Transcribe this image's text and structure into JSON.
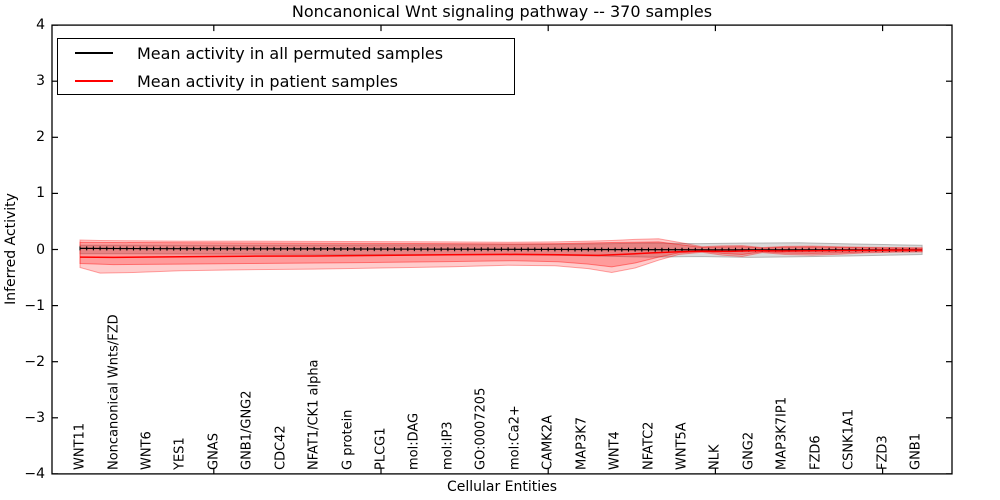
{
  "chart_data": {
    "type": "line",
    "title": "Noncanonical Wnt signaling pathway -- 370 samples",
    "samples_count": 370,
    "xlabel": "Cellular Entities",
    "ylabel": "Inferred Activity",
    "ylim": [
      -4,
      4
    ],
    "grid": false,
    "legend_position": "upper left",
    "yticks": {
      "values": [
        4,
        3,
        2,
        1,
        0,
        -1,
        -2,
        -3,
        -4
      ],
      "labels": [
        "4",
        "3",
        "2",
        "1",
        "0",
        "−1",
        "−2",
        "−3",
        "−4"
      ]
    },
    "xticks_unlabeled_values": [
      5,
      10,
      15,
      20,
      25
    ],
    "categories": [
      "WNT11",
      "Noncanonical Wnts/FZD",
      "WNT6",
      "YES1",
      "GNAS",
      "GNB1/GNG2",
      "CDC42",
      "NFAT1/CK1 alpha",
      "G protein",
      "PLCG1",
      "mol:DAG",
      "mol:IP3",
      "GO:0007205",
      "mol:Ca2+",
      "CAMK2A",
      "MAP3K7",
      "WNT4",
      "NFATC2",
      "WNT5A",
      "NLK",
      "GNG2",
      "MAP3K7IP1",
      "FZD6",
      "CSNK1A1",
      "FZD3",
      "GNB1"
    ],
    "series": [
      {
        "name": "Mean activity in all permuted samples",
        "color": "#000000",
        "marker": "small-vertical-tick",
        "points": [
          [
            1,
            0.02
          ],
          [
            4,
            0.015
          ],
          [
            8,
            0.01
          ],
          [
            12,
            0.005
          ],
          [
            16,
            0.0
          ],
          [
            20,
            -0.005
          ],
          [
            26.18,
            -0.005
          ]
        ]
      },
      {
        "name": "Mean activity in patient samples",
        "color": "#ff0000",
        "marker": "none",
        "points": [
          [
            1,
            -0.135
          ],
          [
            2,
            -0.14
          ],
          [
            4,
            -0.13
          ],
          [
            6,
            -0.12
          ],
          [
            8,
            -0.115
          ],
          [
            10,
            -0.105
          ],
          [
            12,
            -0.095
          ],
          [
            14,
            -0.088
          ],
          [
            15.3,
            -0.095
          ],
          [
            16.5,
            -0.105
          ],
          [
            17.3,
            -0.085
          ],
          [
            18.1,
            -0.06
          ],
          [
            18.9,
            -0.04
          ],
          [
            19.6,
            -0.028
          ],
          [
            20.4,
            -0.033
          ],
          [
            21.1,
            -0.022
          ],
          [
            22,
            -0.027
          ],
          [
            23,
            -0.022
          ],
          [
            24,
            -0.018
          ],
          [
            25,
            -0.012
          ],
          [
            26.18,
            -0.01
          ]
        ]
      }
    ],
    "bands": [
      {
        "name": "permuted-band",
        "color": "#787878",
        "alpha": 0.28,
        "points": [
          [
            1,
            0.075,
            -0.075
          ],
          [
            5,
            0.075,
            -0.08
          ],
          [
            9,
            0.08,
            -0.09
          ],
          [
            13,
            0.085,
            -0.095
          ],
          [
            15,
            0.09,
            -0.1
          ],
          [
            16.5,
            0.1,
            -0.115
          ],
          [
            18,
            0.115,
            -0.135
          ],
          [
            19.5,
            0.105,
            -0.125
          ],
          [
            21,
            0.115,
            -0.14
          ],
          [
            22.5,
            0.12,
            -0.13
          ],
          [
            24,
            0.1,
            -0.115
          ],
          [
            25.3,
            0.085,
            -0.1
          ],
          [
            26.18,
            0.075,
            -0.09
          ]
        ]
      },
      {
        "name": "patient-band-outer",
        "color": "#ff0000",
        "alpha": 0.2,
        "points": [
          [
            1,
            0.17,
            -0.32
          ],
          [
            1.6,
            0.16,
            -0.42
          ],
          [
            2.6,
            0.155,
            -0.41
          ],
          [
            4,
            0.15,
            -0.38
          ],
          [
            6,
            0.15,
            -0.36
          ],
          [
            8,
            0.145,
            -0.35
          ],
          [
            10,
            0.14,
            -0.33
          ],
          [
            12,
            0.135,
            -0.31
          ],
          [
            13.8,
            0.13,
            -0.28
          ],
          [
            15.2,
            0.135,
            -0.29
          ],
          [
            16.2,
            0.15,
            -0.34
          ],
          [
            16.9,
            0.16,
            -0.41
          ],
          [
            17.6,
            0.18,
            -0.33
          ],
          [
            18.3,
            0.19,
            -0.19
          ],
          [
            18.9,
            0.13,
            -0.09
          ],
          [
            19.6,
            0.05,
            -0.05
          ],
          [
            20.2,
            0.065,
            -0.1
          ],
          [
            20.8,
            0.07,
            -0.125
          ],
          [
            21.4,
            0.035,
            -0.055
          ],
          [
            22.1,
            0.055,
            -0.09
          ],
          [
            22.9,
            0.06,
            -0.1
          ],
          [
            23.7,
            0.05,
            -0.085
          ],
          [
            24.5,
            0.04,
            -0.06
          ],
          [
            25.3,
            0.035,
            -0.05
          ],
          [
            26.18,
            0.03,
            -0.045
          ]
        ]
      },
      {
        "name": "patient-band-inner",
        "color": "#ff0000",
        "alpha": 0.24,
        "points": [
          [
            1,
            0.13,
            -0.25
          ],
          [
            2,
            0.125,
            -0.27
          ],
          [
            4,
            0.12,
            -0.26
          ],
          [
            6,
            0.115,
            -0.25
          ],
          [
            9,
            0.11,
            -0.235
          ],
          [
            12,
            0.105,
            -0.215
          ],
          [
            14,
            0.1,
            -0.2
          ],
          [
            15.3,
            0.105,
            -0.22
          ],
          [
            16.2,
            0.115,
            -0.26
          ],
          [
            16.9,
            0.125,
            -0.31
          ],
          [
            17.6,
            0.13,
            -0.24
          ],
          [
            18.3,
            0.135,
            -0.135
          ],
          [
            18.9,
            0.09,
            -0.06
          ],
          [
            19.6,
            0.035,
            -0.035
          ],
          [
            20.2,
            0.045,
            -0.07
          ],
          [
            20.8,
            0.05,
            -0.09
          ],
          [
            21.4,
            0.025,
            -0.04
          ],
          [
            22.1,
            0.04,
            -0.065
          ],
          [
            22.9,
            0.045,
            -0.07
          ],
          [
            23.7,
            0.035,
            -0.06
          ],
          [
            24.5,
            0.03,
            -0.045
          ],
          [
            25.3,
            0.025,
            -0.035
          ],
          [
            26.18,
            0.022,
            -0.032
          ]
        ]
      }
    ]
  },
  "legend": {
    "items": [
      {
        "label": "Mean activity in all permuted samples",
        "color": "#000000"
      },
      {
        "label": "Mean activity in patient samples",
        "color": "#ff0000"
      }
    ]
  }
}
